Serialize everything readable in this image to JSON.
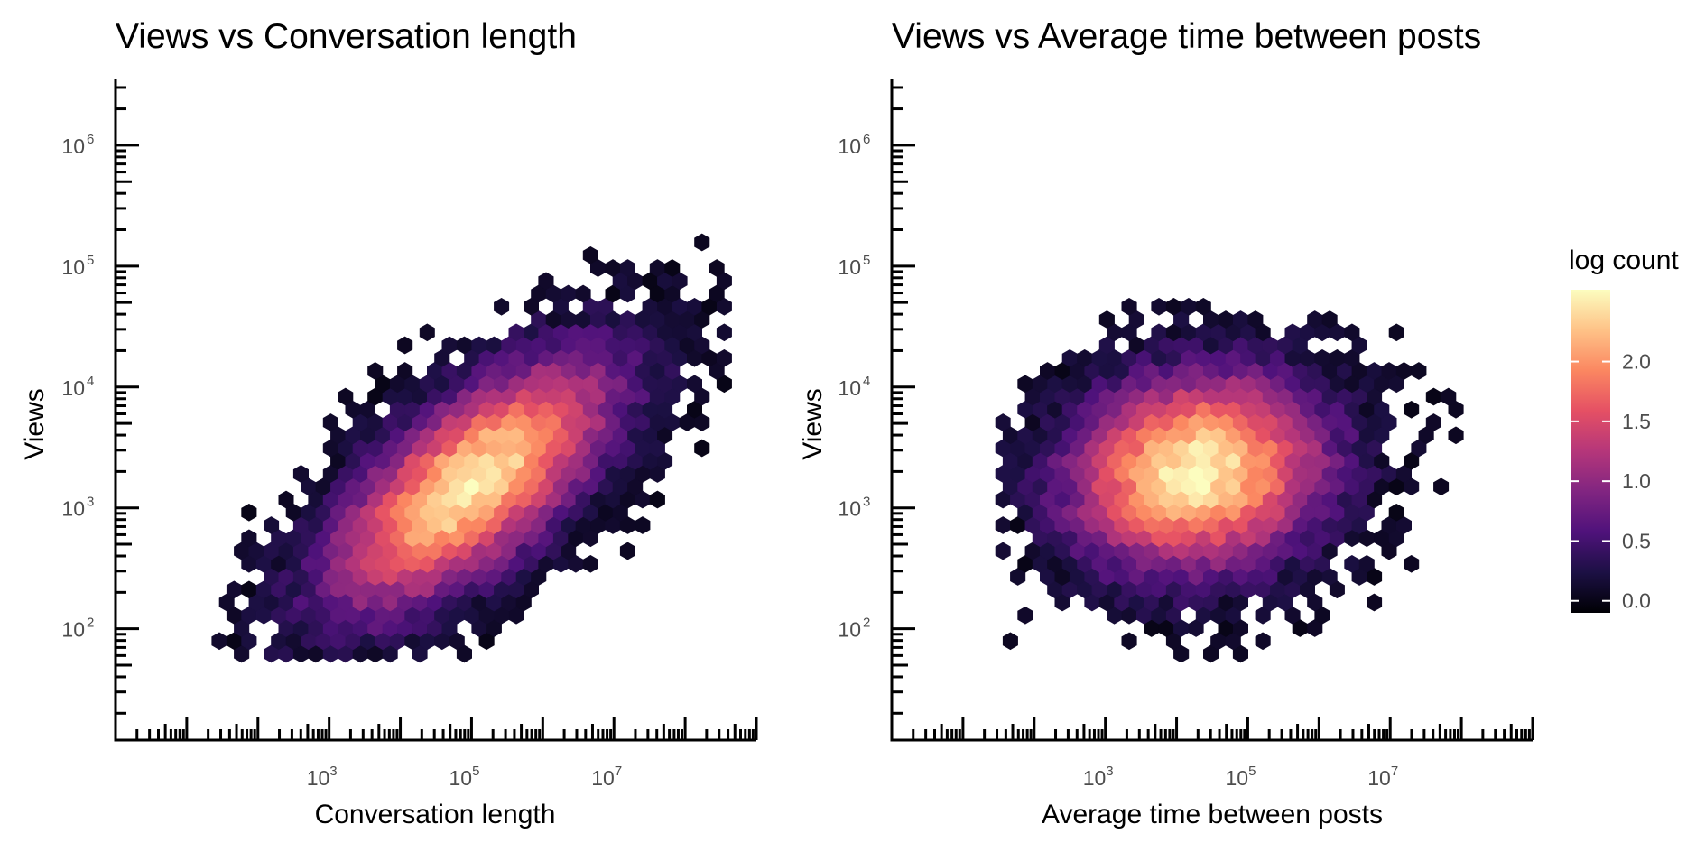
{
  "chart_data": [
    {
      "type": "heatmap",
      "subtype": "hexbin",
      "title": "Views vs Conversation length",
      "xlabel": "Conversation length",
      "ylabel": "Views",
      "x_scale": "log10",
      "y_scale": "log10",
      "xlim": [
        1,
        1000000000
      ],
      "ylim": [
        12,
        3500000
      ],
      "x_ticks": [
        {
          "value": 1000,
          "base": "10",
          "exp": "3"
        },
        {
          "value": 100000,
          "base": "10",
          "exp": "5"
        },
        {
          "value": 10000000,
          "base": "10",
          "exp": "7"
        }
      ],
      "y_ticks": [
        {
          "value": 100,
          "base": "10",
          "exp": "2"
        },
        {
          "value": 1000,
          "base": "10",
          "exp": "3"
        },
        {
          "value": 10000,
          "base": "10",
          "exp": "4"
        },
        {
          "value": 100000,
          "base": "10",
          "exp": "5"
        },
        {
          "value": 1000000,
          "base": "10",
          "exp": "6"
        }
      ],
      "grid": false,
      "rug_ticks": true,
      "density_model": {
        "center_log10": [
          5.0,
          3.2
        ],
        "spread": [
          1.05,
          0.4
        ],
        "correlation": 0.35,
        "peak_log_count": 2.65,
        "x_range_log10": [
          1.4,
          8.6
        ],
        "y_range_log10": [
          1.7,
          6.4
        ]
      }
    },
    {
      "type": "heatmap",
      "subtype": "hexbin",
      "title": "Views vs Average time between posts",
      "xlabel": "Average time between posts",
      "ylabel": "Views",
      "x_scale": "log10",
      "y_scale": "log10",
      "xlim": [
        1,
        1000000000
      ],
      "ylim": [
        12,
        3500000
      ],
      "x_ticks": [
        {
          "value": 1000,
          "base": "10",
          "exp": "3"
        },
        {
          "value": 100000,
          "base": "10",
          "exp": "5"
        },
        {
          "value": 10000000,
          "base": "10",
          "exp": "7"
        }
      ],
      "y_ticks": [
        {
          "value": 100,
          "base": "10",
          "exp": "2"
        },
        {
          "value": 1000,
          "base": "10",
          "exp": "3"
        },
        {
          "value": 10000,
          "base": "10",
          "exp": "4"
        },
        {
          "value": 100000,
          "base": "10",
          "exp": "5"
        },
        {
          "value": 1000000,
          "base": "10",
          "exp": "6"
        }
      ],
      "grid": false,
      "rug_ticks": true,
      "density_model": {
        "center_log10": [
          4.3,
          3.3
        ],
        "spread": [
          0.95,
          0.42
        ],
        "correlation": 0.05,
        "peak_log_count": 2.7,
        "x_range_log10": [
          1.5,
          8.9
        ],
        "y_range_log10": [
          1.7,
          6.4
        ]
      }
    }
  ],
  "legend": {
    "title": "log count",
    "placement": "right",
    "colormap": "magma",
    "range": [
      -0.1,
      2.6
    ],
    "ticks": [
      "0.0",
      "0.5",
      "1.0",
      "1.5",
      "2.0"
    ],
    "tick_values": [
      0.0,
      0.5,
      1.0,
      1.5,
      2.0
    ],
    "colors": [
      "#000004",
      "#1c1044",
      "#4f127b",
      "#812581",
      "#b5367a",
      "#e55064",
      "#fb8761",
      "#fec287",
      "#fcfdbf"
    ]
  }
}
